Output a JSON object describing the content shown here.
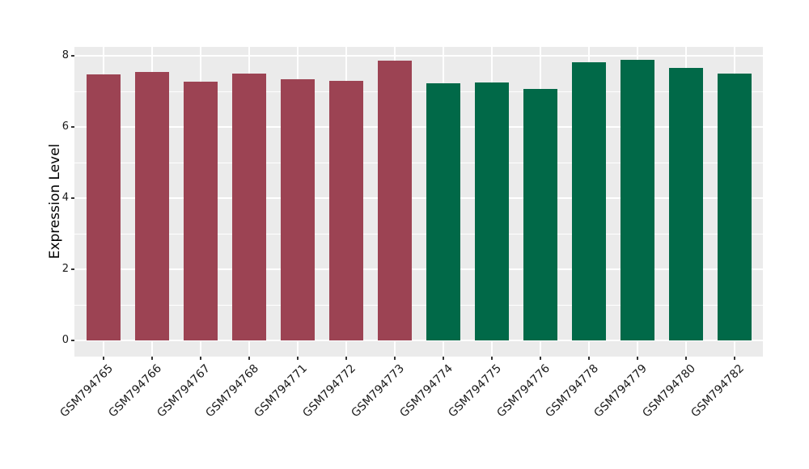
{
  "chart_data": {
    "type": "bar",
    "title": "",
    "xlabel": "",
    "ylabel": "Expression Level",
    "categories": [
      "GSM794765",
      "GSM794766",
      "GSM794767",
      "GSM794768",
      "GSM794771",
      "GSM794772",
      "GSM794773",
      "GSM794774",
      "GSM794775",
      "GSM794776",
      "GSM794778",
      "GSM794779",
      "GSM794780",
      "GSM794782"
    ],
    "values": [
      7.49,
      7.56,
      7.29,
      7.51,
      7.35,
      7.31,
      7.86,
      7.24,
      7.26,
      7.07,
      7.83,
      7.9,
      7.67,
      7.51
    ],
    "bar_colors": [
      "#9C4353",
      "#9C4353",
      "#9C4353",
      "#9C4353",
      "#9C4353",
      "#9C4353",
      "#9C4353",
      "#016948",
      "#016948",
      "#016948",
      "#016948",
      "#016948",
      "#016948",
      "#016948"
    ],
    "group_palette": {
      "group1": "#9C4353",
      "group2": "#016948"
    },
    "ylim": [
      0,
      8.26
    ],
    "yticks_major": [
      0,
      2,
      4,
      6,
      8
    ],
    "yticks_minor": [
      1,
      3,
      5,
      7
    ],
    "grid": "on",
    "legend": "none",
    "panel_background": "#EBEBEB",
    "grid_color": "#FFFFFF",
    "tick_mark_color": "#333333",
    "axis_text_color": "#1A1A1A"
  }
}
